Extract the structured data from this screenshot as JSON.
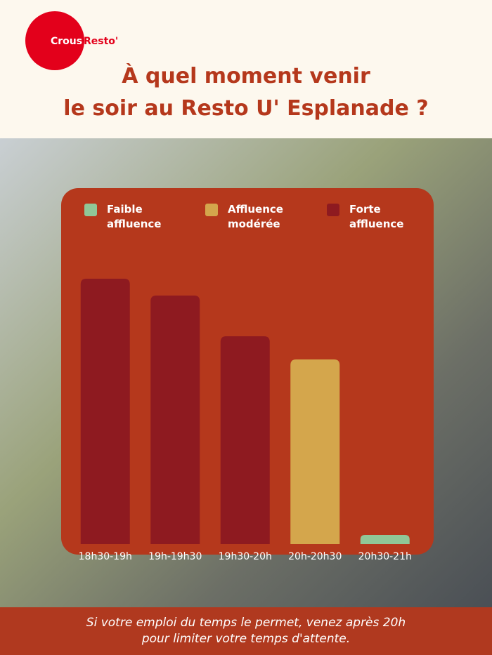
{
  "logo": {
    "left": "Crous",
    "right": "Resto'"
  },
  "chart_data": {
    "type": "bar",
    "title": "À quel moment venir\nle soir au Resto U' Esplanade ?",
    "categories": [
      "18h30-19h",
      "19h-19h30",
      "19h30-20h",
      "20h-20h30",
      "20h30-21h"
    ],
    "series": [
      {
        "name": "Faible affluence",
        "color": "#90c797",
        "values": [
          null,
          null,
          null,
          null,
          13
        ]
      },
      {
        "name": "Affluence modérée",
        "color": "#d4a64c",
        "values": [
          null,
          null,
          null,
          263,
          null
        ]
      },
      {
        "name": "Forte affluence",
        "color": "#8e1a20",
        "values": [
          378,
          354,
          296,
          null,
          null
        ]
      }
    ],
    "ylim": [
      0,
      400
    ],
    "footnote": "Si votre emploi du temps le permet, venez après 20h\npour limiter votre temps d'attente."
  }
}
